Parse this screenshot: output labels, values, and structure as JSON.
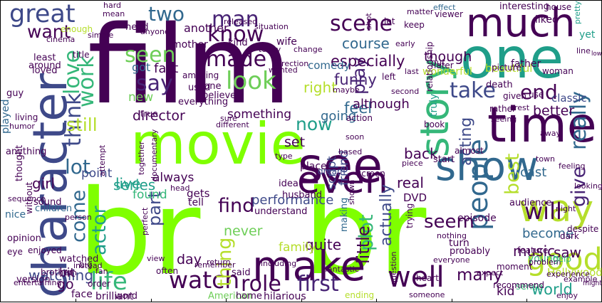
{
  "wordcloud": {
    "palette": {
      "dark_purple": "#440154",
      "purple": "#482475",
      "indigo": "#3e4989",
      "blue": "#31688e",
      "teal": "#26828e",
      "green_teal": "#1f9e89",
      "green": "#35b779",
      "light_green": "#6ece58",
      "lime": "#b5de2b",
      "bright_lime": "#7fff00"
    },
    "words": [
      {
        "text": "br",
        "color": "#7fff00"
      },
      {
        "text": "br",
        "color": "#7fff00"
      },
      {
        "text": "film",
        "color": "#440154"
      },
      {
        "text": "movie",
        "color": "#7fff00"
      },
      {
        "text": "one",
        "color": "#1f9e89"
      },
      {
        "text": "character",
        "color": "#3e4989"
      },
      {
        "text": "time",
        "color": "#440154"
      },
      {
        "text": "see",
        "color": "#440154"
      },
      {
        "text": "make",
        "color": "#440154"
      },
      {
        "text": "good",
        "color": "#b5de2b"
      },
      {
        "text": "show",
        "color": "#31688e"
      },
      {
        "text": "story",
        "color": "#35b779"
      },
      {
        "text": "much",
        "color": "#440154"
      },
      {
        "text": "way",
        "color": "#b5de2b"
      },
      {
        "text": "even",
        "color": "#440154"
      },
      {
        "text": "great",
        "color": "#3e4989"
      },
      {
        "text": "people",
        "color": "#31688e"
      },
      {
        "text": "well",
        "color": "#440154"
      },
      {
        "text": "watch",
        "color": "#440154"
      },
      {
        "text": "life",
        "color": "#35b779"
      },
      {
        "text": "look",
        "color": "#6ece58"
      },
      {
        "text": "made",
        "color": "#440154"
      },
      {
        "text": "know",
        "color": "#440154"
      },
      {
        "text": "seen",
        "color": "#6ece58"
      },
      {
        "text": "say",
        "color": "#482475"
      },
      {
        "text": "think",
        "color": "#3e4989"
      },
      {
        "text": "love",
        "color": "#35b779"
      },
      {
        "text": "work",
        "color": "#35b779"
      },
      {
        "text": "first",
        "color": "#482475"
      },
      {
        "text": "role",
        "color": "#440154"
      },
      {
        "text": "man",
        "color": "#482475"
      },
      {
        "text": "scene",
        "color": "#440154"
      },
      {
        "text": "two",
        "color": "#31688e"
      },
      {
        "text": "end",
        "color": "#440154"
      },
      {
        "text": "take",
        "color": "#3e4989"
      },
      {
        "text": "really",
        "color": "#31688e"
      },
      {
        "text": "will",
        "color": "#440154"
      },
      {
        "text": "best",
        "color": "#b5de2b"
      },
      {
        "text": "give",
        "color": "#482475"
      },
      {
        "text": "thing",
        "color": "#b5de2b"
      },
      {
        "text": "plot",
        "color": "#35b779"
      },
      {
        "text": "find",
        "color": "#440154"
      },
      {
        "text": "lot",
        "color": "#31688e"
      },
      {
        "text": "actor",
        "color": "#1f9e89"
      },
      {
        "text": "come",
        "color": "#31688e"
      },
      {
        "text": "want",
        "color": "#440154"
      },
      {
        "text": "still",
        "color": "#b5de2b"
      },
      {
        "text": "live",
        "color": "#1f9e89"
      },
      {
        "text": "series",
        "color": "#1f9e89"
      },
      {
        "text": "part",
        "color": "#3e4989"
      },
      {
        "text": "little",
        "color": "#440154"
      },
      {
        "text": "actually",
        "color": "#3e4989"
      },
      {
        "text": "now",
        "color": "#1f9e89"
      },
      {
        "text": "play",
        "color": "#482475"
      },
      {
        "text": "acting",
        "color": "#3e4989"
      },
      {
        "text": "seem",
        "color": "#440154"
      },
      {
        "text": "performance",
        "color": "#3e4989"
      },
      {
        "text": "many",
        "color": "#440154"
      },
      {
        "text": "world",
        "color": "#1f9e89"
      },
      {
        "text": "director",
        "color": "#440154"
      },
      {
        "text": "something",
        "color": "#440154"
      },
      {
        "text": "course",
        "color": "#31688e"
      },
      {
        "text": "especially",
        "color": "#440154"
      },
      {
        "text": "though",
        "color": "#440154"
      },
      {
        "text": "funny",
        "color": "#482475"
      },
      {
        "text": "feel",
        "color": "#31688e"
      },
      {
        "text": "right",
        "color": "#b5de2b"
      },
      {
        "text": "although",
        "color": "#440154"
      },
      {
        "text": "going",
        "color": "#31688e"
      },
      {
        "text": "friend",
        "color": "#3e4989"
      },
      {
        "text": "script",
        "color": "#3e4989"
      },
      {
        "text": "back",
        "color": "#440154"
      },
      {
        "text": "real",
        "color": "#440154"
      },
      {
        "text": "set",
        "color": "#440154"
      },
      {
        "text": "never",
        "color": "#6ece58"
      },
      {
        "text": "always",
        "color": "#440154"
      },
      {
        "text": "found",
        "color": "#35b779"
      },
      {
        "text": "girl",
        "color": "#440154"
      },
      {
        "text": "point",
        "color": "#3e4989"
      },
      {
        "text": "played",
        "color": "#31688e"
      },
      {
        "text": "watching",
        "color": "#3e4989"
      },
      {
        "text": "bit",
        "color": "#440154"
      },
      {
        "text": "go",
        "color": "#440154"
      },
      {
        "text": "day",
        "color": "#440154"
      },
      {
        "text": "quite",
        "color": "#440154"
      },
      {
        "text": "family",
        "color": "#b5de2b"
      },
      {
        "text": "music",
        "color": "#440154"
      },
      {
        "text": "saw",
        "color": "#440154"
      },
      {
        "text": "become",
        "color": "#31688e"
      },
      {
        "text": "better",
        "color": "#440154"
      },
      {
        "text": "cast",
        "color": "#31688e"
      },
      {
        "text": "fact",
        "color": "#440154"
      },
      {
        "text": "got",
        "color": "#31688e"
      },
      {
        "text": "new",
        "color": "#6ece58"
      },
      {
        "text": "another",
        "color": "#440154"
      },
      {
        "text": "classic",
        "color": "#3e4989"
      },
      {
        "text": "beautiful",
        "color": "#b5de2b"
      },
      {
        "text": "episode",
        "color": "#440154"
      },
      {
        "text": "gets",
        "color": "#440154"
      },
      {
        "text": "tell",
        "color": "#440154"
      },
      {
        "text": "DVD",
        "color": "#440154"
      },
      {
        "text": "comedy",
        "color": "#31688e"
      },
      {
        "text": "kid",
        "color": "#440154"
      },
      {
        "text": "sense",
        "color": "#35b779"
      },
      {
        "text": "ending",
        "color": "#b5de2b"
      },
      {
        "text": "face",
        "color": "#440154"
      },
      {
        "text": "brilliant",
        "color": "#440154"
      },
      {
        "text": "hilarious",
        "color": "#440154"
      },
      {
        "text": "wonderful",
        "color": "#b5de2b"
      },
      {
        "text": "making",
        "color": "#31688e"
      },
      {
        "text": "dream",
        "color": "#3e4989"
      },
      {
        "text": "father",
        "color": "#440154"
      },
      {
        "text": "truly",
        "color": "#1f9e89"
      },
      {
        "text": "young",
        "color": "#35b779"
      },
      {
        "text": "audience",
        "color": "#440154"
      },
      {
        "text": "Hollywood",
        "color": "#b5de2b"
      },
      {
        "text": "looking",
        "color": "#440154"
      },
      {
        "text": "turn",
        "color": "#440154"
      },
      {
        "text": "probably",
        "color": "#440154"
      },
      {
        "text": "start",
        "color": "#440154"
      },
      {
        "text": "pretty",
        "color": "#1f9e89"
      },
      {
        "text": "yet",
        "color": "#1f9e89"
      },
      {
        "text": "nice",
        "color": "#31688e"
      },
      {
        "text": "children",
        "color": "#31688e"
      },
      {
        "text": "recommend",
        "color": "#440154"
      },
      {
        "text": "mother",
        "color": "#440154"
      },
      {
        "text": "liked",
        "color": "#440154"
      },
      {
        "text": "interesting",
        "color": "#440154"
      },
      {
        "text": "house",
        "color": "#440154"
      },
      {
        "text": "death",
        "color": "#440154"
      },
      {
        "text": "picture",
        "color": "#440154"
      },
      {
        "text": "woman",
        "color": "#440154"
      },
      {
        "text": "effect",
        "color": "#31688e"
      },
      {
        "text": "matter",
        "color": "#440154"
      },
      {
        "text": "wife",
        "color": "#440154"
      },
      {
        "text": "mean",
        "color": "#440154"
      },
      {
        "text": "hard",
        "color": "#440154"
      },
      {
        "text": "believe",
        "color": "#440154"
      },
      {
        "text": "need",
        "color": "#440154"
      },
      {
        "text": "kind",
        "color": "#440154"
      },
      {
        "text": "today",
        "color": "#440154"
      },
      {
        "text": "enough",
        "color": "#b5de2b"
      },
      {
        "text": "loved",
        "color": "#440154"
      },
      {
        "text": "least",
        "color": "#440154"
      },
      {
        "text": "around",
        "color": "#440154"
      },
      {
        "text": "different",
        "color": "#440154"
      },
      {
        "text": "used",
        "color": "#440154"
      },
      {
        "text": "done",
        "color": "#440154"
      },
      {
        "text": "everything",
        "color": "#440154"
      },
      {
        "text": "husband",
        "color": "#440154"
      },
      {
        "text": "idea",
        "color": "#440154"
      },
      {
        "text": "head",
        "color": "#440154"
      },
      {
        "text": "place",
        "color": "#440154"
      },
      {
        "text": "understand",
        "color": "#440154"
      },
      {
        "text": "moment",
        "color": "#440154"
      },
      {
        "text": "problem",
        "color": "#440154"
      },
      {
        "text": "expect",
        "color": "#440154"
      },
      {
        "text": "help",
        "color": "#35b779"
      },
      {
        "text": "feature",
        "color": "#440154"
      },
      {
        "text": "dark",
        "color": "#440154"
      },
      {
        "text": "rather",
        "color": "#440154"
      },
      {
        "text": "given",
        "color": "#440154"
      },
      {
        "text": "use",
        "color": "#440154"
      },
      {
        "text": "relationship",
        "color": "#440154"
      },
      {
        "text": "anything",
        "color": "#440154"
      },
      {
        "text": "sound",
        "color": "#440154"
      },
      {
        "text": "version",
        "color": "#440154"
      },
      {
        "text": "opinion",
        "color": "#440154"
      },
      {
        "text": "enjoyed",
        "color": "#440154"
      },
      {
        "text": "word",
        "color": "#440154"
      },
      {
        "text": "American",
        "color": "#6ece58"
      },
      {
        "text": "home",
        "color": "#440154"
      },
      {
        "text": "heart",
        "color": "#440154"
      },
      {
        "text": "might",
        "color": "#440154"
      },
      {
        "text": "despite",
        "color": "#440154"
      },
      {
        "text": "question",
        "color": "#440154"
      },
      {
        "text": "entertaining",
        "color": "#440154"
      },
      {
        "text": "brother",
        "color": "#440154"
      },
      {
        "text": "order",
        "color": "#440154"
      },
      {
        "text": "thought",
        "color": "#440154"
      },
      {
        "text": "without",
        "color": "#440154"
      },
      {
        "text": "simple",
        "color": "#440154"
      },
      {
        "text": "cinema",
        "color": "#440154"
      },
      {
        "text": "title",
        "color": "#440154"
      },
      {
        "text": "released",
        "color": "#440154"
      },
      {
        "text": "situation",
        "color": "#440154"
      },
      {
        "text": "direction",
        "color": "#440154"
      },
      {
        "text": "amazing",
        "color": "#440154"
      },
      {
        "text": "anyone",
        "color": "#440154"
      },
      {
        "text": "guy",
        "color": "#440154"
      },
      {
        "text": "living",
        "color": "#440154"
      },
      {
        "text": "humor",
        "color": "#440154"
      },
      {
        "text": "sequence",
        "color": "#440154"
      },
      {
        "text": "watched",
        "color": "#440154"
      },
      {
        "text": "instead",
        "color": "#440154"
      },
      {
        "text": "person",
        "color": "#440154"
      },
      {
        "text": "perfect",
        "color": "#440154"
      },
      {
        "text": "trying",
        "color": "#440154"
      },
      {
        "text": "fantastic",
        "color": "#440154"
      },
      {
        "text": "including",
        "color": "#440154"
      },
      {
        "text": "said",
        "color": "#440154"
      },
      {
        "text": "often",
        "color": "#440154"
      },
      {
        "text": "true",
        "color": "#440154"
      },
      {
        "text": "everyone",
        "color": "#440154"
      },
      {
        "text": "nothing",
        "color": "#440154"
      },
      {
        "text": "shown",
        "color": "#440154"
      },
      {
        "text": "almost",
        "color": "#440154"
      },
      {
        "text": "seeing",
        "color": "#440154"
      },
      {
        "text": "second",
        "color": "#440154"
      },
      {
        "text": "maybe",
        "color": "#440154"
      },
      {
        "text": "later",
        "color": "#440154"
      },
      {
        "text": "action",
        "color": "#440154"
      },
      {
        "text": "book",
        "color": "#440154"
      },
      {
        "text": "screen",
        "color": "#440154"
      },
      {
        "text": "put",
        "color": "#440154"
      },
      {
        "text": "keep",
        "color": "#440154"
      },
      {
        "text": "left",
        "color": "#440154"
      },
      {
        "text": "shot",
        "color": "#440154"
      },
      {
        "text": "let",
        "color": "#440154"
      },
      {
        "text": "early",
        "color": "#440154"
      },
      {
        "text": "experience",
        "color": "#440154"
      },
      {
        "text": "return",
        "color": "#440154"
      },
      {
        "text": "attempt",
        "color": "#440154"
      },
      {
        "text": "together",
        "color": "#440154"
      },
      {
        "text": "documentary",
        "color": "#440154"
      },
      {
        "text": "type",
        "color": "#440154"
      },
      {
        "text": "soon",
        "color": "#440154"
      },
      {
        "text": "based",
        "color": "#440154"
      },
      {
        "text": "wanted",
        "color": "#440154"
      },
      {
        "text": "big",
        "color": "#440154"
      },
      {
        "text": "fun",
        "color": "#440154"
      },
      {
        "text": "fan",
        "color": "#440154"
      },
      {
        "text": "eye",
        "color": "#440154"
      },
      {
        "text": "viewer",
        "color": "#440154"
      },
      {
        "text": "sure",
        "color": "#440154"
      },
      {
        "text": "someone",
        "color": "#440154"
      },
      {
        "text": "example",
        "color": "#440154"
      },
      {
        "text": "town",
        "color": "#440154"
      },
      {
        "text": "away",
        "color": "#440154"
      },
      {
        "text": "night",
        "color": "#440154"
      },
      {
        "text": "line",
        "color": "#440154"
      },
      {
        "text": "low",
        "color": "#440154"
      },
      {
        "text": "piece",
        "color": "#440154"
      },
      {
        "text": "view",
        "color": "#440154"
      },
      {
        "text": "remember",
        "color": "#440154"
      },
      {
        "text": "change",
        "color": "#440154"
      },
      {
        "text": "enjoy",
        "color": "#440154"
      },
      {
        "text": "feeling",
        "color": "#440154"
      },
      {
        "text": "rest",
        "color": "#440154"
      },
      {
        "text": "last",
        "color": "#440154"
      }
    ]
  }
}
